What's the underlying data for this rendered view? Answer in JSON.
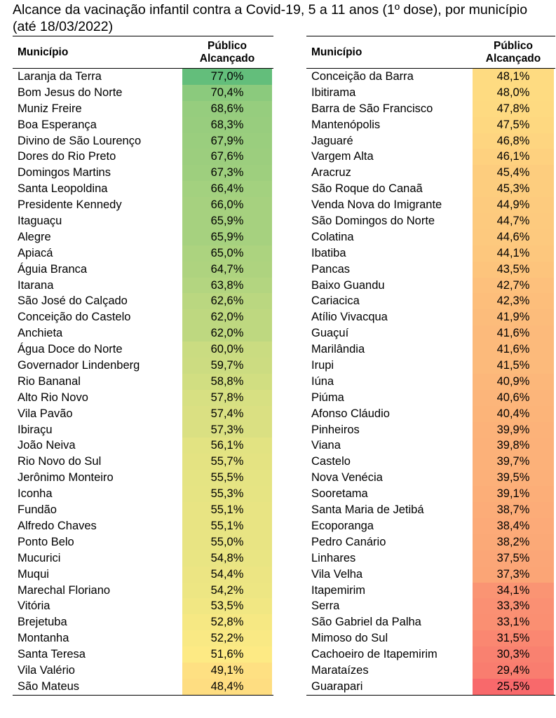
{
  "title": "Alcance da vacinação infantil contra a Covid-19, 5 a 11 anos (1º dose), por município (até 18/03/2022)",
  "headers": {
    "name": "Município",
    "value_line1": "Público",
    "value_line2": "Alcançado"
  },
  "left_rows": [
    {
      "name": "Laranja da Terra",
      "value": "77,0%",
      "pct": 77.0
    },
    {
      "name": "Bom Jesus do Norte",
      "value": "70,4%",
      "pct": 70.4
    },
    {
      "name": "Muniz Freire",
      "value": "68,6%",
      "pct": 68.6
    },
    {
      "name": "Boa Esperança",
      "value": "68,3%",
      "pct": 68.3
    },
    {
      "name": "Divino de São Lourenço",
      "value": "67,9%",
      "pct": 67.9
    },
    {
      "name": "Dores do Rio Preto",
      "value": "67,6%",
      "pct": 67.6
    },
    {
      "name": "Domingos Martins",
      "value": "67,3%",
      "pct": 67.3
    },
    {
      "name": "Santa Leopoldina",
      "value": "66,4%",
      "pct": 66.4
    },
    {
      "name": "Presidente Kennedy",
      "value": "66,0%",
      "pct": 66.0
    },
    {
      "name": "Itaguaçu",
      "value": "65,9%",
      "pct": 65.9
    },
    {
      "name": "Alegre",
      "value": "65,9%",
      "pct": 65.9
    },
    {
      "name": "Apiacá",
      "value": "65,0%",
      "pct": 65.0
    },
    {
      "name": "Águia Branca",
      "value": "64,7%",
      "pct": 64.7
    },
    {
      "name": "Itarana",
      "value": "63,8%",
      "pct": 63.8
    },
    {
      "name": "São José do Calçado",
      "value": "62,6%",
      "pct": 62.6
    },
    {
      "name": "Conceição do Castelo",
      "value": "62,0%",
      "pct": 62.0
    },
    {
      "name": "Anchieta",
      "value": "62,0%",
      "pct": 62.0
    },
    {
      "name": "Água Doce do Norte",
      "value": "60,0%",
      "pct": 60.0
    },
    {
      "name": "Governador Lindenberg",
      "value": "59,7%",
      "pct": 59.7
    },
    {
      "name": "Rio Bananal",
      "value": "58,8%",
      "pct": 58.8
    },
    {
      "name": "Alto Rio Novo",
      "value": "57,8%",
      "pct": 57.8
    },
    {
      "name": "Vila Pavão",
      "value": "57,4%",
      "pct": 57.4
    },
    {
      "name": "Ibiraçu",
      "value": "57,3%",
      "pct": 57.3
    },
    {
      "name": "João Neiva",
      "value": "56,1%",
      "pct": 56.1
    },
    {
      "name": "Rio Novo do Sul",
      "value": "55,7%",
      "pct": 55.7
    },
    {
      "name": "Jerônimo Monteiro",
      "value": "55,5%",
      "pct": 55.5
    },
    {
      "name": "Iconha",
      "value": "55,3%",
      "pct": 55.3
    },
    {
      "name": "Fundão",
      "value": "55,1%",
      "pct": 55.1
    },
    {
      "name": "Alfredo Chaves",
      "value": "55,1%",
      "pct": 55.1
    },
    {
      "name": "Ponto Belo",
      "value": "55,0%",
      "pct": 55.0
    },
    {
      "name": "Mucurici",
      "value": "54,8%",
      "pct": 54.8
    },
    {
      "name": "Muqui",
      "value": "54,4%",
      "pct": 54.4
    },
    {
      "name": "Marechal Floriano",
      "value": "54,2%",
      "pct": 54.2
    },
    {
      "name": "Vitória",
      "value": "53,5%",
      "pct": 53.5
    },
    {
      "name": "Brejetuba",
      "value": "52,8%",
      "pct": 52.8
    },
    {
      "name": "Montanha",
      "value": "52,2%",
      "pct": 52.2
    },
    {
      "name": "Santa Teresa",
      "value": "51,6%",
      "pct": 51.6
    },
    {
      "name": "Vila Valério",
      "value": "49,1%",
      "pct": 49.1
    },
    {
      "name": "São Mateus",
      "value": "48,4%",
      "pct": 48.4
    }
  ],
  "right_rows": [
    {
      "name": "Conceição da Barra",
      "value": "48,1%",
      "pct": 48.1
    },
    {
      "name": "Ibitirama",
      "value": "48,0%",
      "pct": 48.0
    },
    {
      "name": "Barra de São Francisco",
      "value": "47,8%",
      "pct": 47.8
    },
    {
      "name": "Mantenópolis",
      "value": "47,5%",
      "pct": 47.5
    },
    {
      "name": "Jaguaré",
      "value": "46,8%",
      "pct": 46.8
    },
    {
      "name": "Vargem Alta",
      "value": "46,1%",
      "pct": 46.1
    },
    {
      "name": "Aracruz",
      "value": "45,4%",
      "pct": 45.4
    },
    {
      "name": "São Roque do Canaã",
      "value": "45,3%",
      "pct": 45.3
    },
    {
      "name": "Venda Nova do Imigrante",
      "value": "44,9%",
      "pct": 44.9
    },
    {
      "name": "São Domingos do Norte",
      "value": "44,7%",
      "pct": 44.7
    },
    {
      "name": "Colatina",
      "value": "44,6%",
      "pct": 44.6
    },
    {
      "name": "Ibatiba",
      "value": "44,1%",
      "pct": 44.1
    },
    {
      "name": "Pancas",
      "value": "43,5%",
      "pct": 43.5
    },
    {
      "name": "Baixo Guandu",
      "value": "42,7%",
      "pct": 42.7
    },
    {
      "name": "Cariacica",
      "value": "42,3%",
      "pct": 42.3
    },
    {
      "name": "Atílio Vivacqua",
      "value": "41,9%",
      "pct": 41.9
    },
    {
      "name": "Guaçuí",
      "value": "41,6%",
      "pct": 41.6
    },
    {
      "name": "Marilândia",
      "value": "41,6%",
      "pct": 41.6
    },
    {
      "name": "Irupi",
      "value": "41,5%",
      "pct": 41.5
    },
    {
      "name": "Iúna",
      "value": "40,9%",
      "pct": 40.9
    },
    {
      "name": "Piúma",
      "value": "40,6%",
      "pct": 40.6
    },
    {
      "name": "Afonso Cláudio",
      "value": "40,4%",
      "pct": 40.4
    },
    {
      "name": "Pinheiros",
      "value": "39,9%",
      "pct": 39.9
    },
    {
      "name": "Viana",
      "value": "39,8%",
      "pct": 39.8
    },
    {
      "name": "Castelo",
      "value": "39,7%",
      "pct": 39.7
    },
    {
      "name": "Nova Venécia",
      "value": "39,5%",
      "pct": 39.5
    },
    {
      "name": "Sooretama",
      "value": "39,1%",
      "pct": 39.1
    },
    {
      "name": "Santa Maria de Jetibá",
      "value": "38,7%",
      "pct": 38.7
    },
    {
      "name": "Ecoporanga",
      "value": "38,4%",
      "pct": 38.4
    },
    {
      "name": "Pedro Canário",
      "value": "38,2%",
      "pct": 38.2
    },
    {
      "name": "Linhares",
      "value": "37,5%",
      "pct": 37.5
    },
    {
      "name": "Vila Velha",
      "value": "37,3%",
      "pct": 37.3
    },
    {
      "name": "Itapemirim",
      "value": "34,1%",
      "pct": 34.1
    },
    {
      "name": "Serra",
      "value": "33,3%",
      "pct": 33.3
    },
    {
      "name": "São Gabriel da Palha",
      "value": "33,1%",
      "pct": 33.1
    },
    {
      "name": "Mimoso do Sul",
      "value": "31,5%",
      "pct": 31.5
    },
    {
      "name": "Cachoeiro de Itapemirim",
      "value": "30,3%",
      "pct": 30.3
    },
    {
      "name": "Marataízes",
      "value": "29,4%",
      "pct": 29.4
    },
    {
      "name": "Guarapari",
      "value": "25,5%",
      "pct": 25.5
    }
  ],
  "color_scale": {
    "low": "#f8696b",
    "mid": "#ffeb84",
    "high": "#63be7b"
  }
}
